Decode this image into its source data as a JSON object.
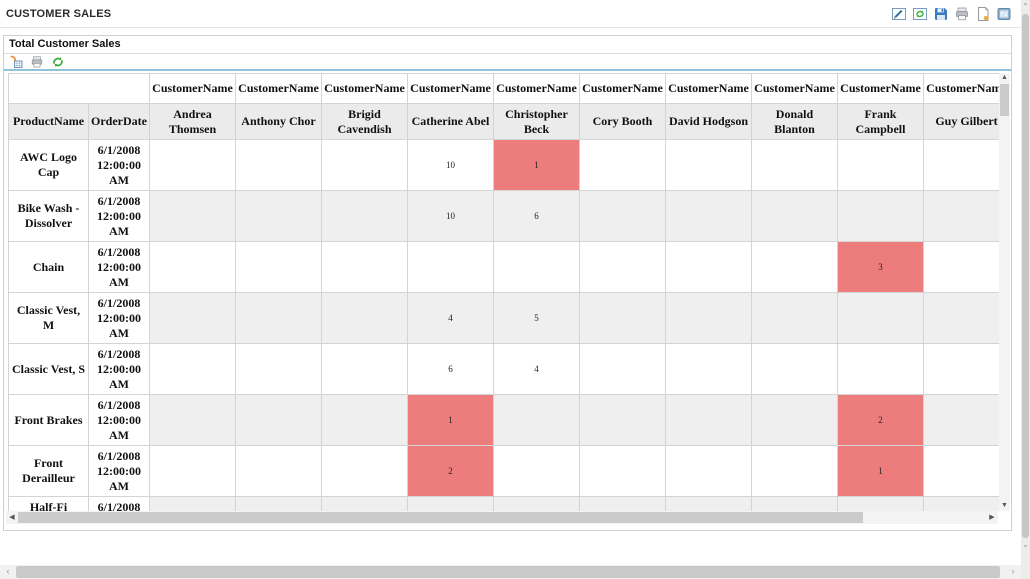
{
  "header": {
    "title": "CUSTOMER SALES"
  },
  "top_toolbar": {
    "icon_names": [
      "edit-report-icon",
      "refresh-view-icon",
      "save-icon",
      "print-icon",
      "print-layout-icon",
      "page-setup-icon"
    ]
  },
  "report": {
    "title": "Total Customer Sales",
    "toolbar_icon_names": [
      "export-icon",
      "print-icon",
      "refresh-icon"
    ]
  },
  "grid": {
    "column_group_label": "CustomerName",
    "row_headers": [
      "ProductName",
      "OrderDate"
    ],
    "customers": [
      "Andrea Thomsen",
      "Anthony Chor",
      "Brigid Cavendish",
      "Catherine Abel",
      "Christopher Beck",
      "Cory Booth",
      "David Hodgson",
      "Donald Blanton",
      "Frank Campbell",
      "Guy Gilbert"
    ],
    "rows": [
      {
        "product": "AWC Logo Cap",
        "order_date": "6/1/2008 12:00:00 AM",
        "values": [
          "",
          "",
          "",
          "10",
          "1",
          "",
          "",
          "",
          "",
          ""
        ],
        "highlight_cols": [
          4
        ],
        "partial": false
      },
      {
        "product": "Bike Wash - Dissolver",
        "order_date": "6/1/2008 12:00:00 AM",
        "values": [
          "",
          "",
          "",
          "10",
          "6",
          "",
          "",
          "",
          "",
          ""
        ],
        "highlight_cols": [],
        "partial": false
      },
      {
        "product": "Chain",
        "order_date": "6/1/2008 12:00:00 AM",
        "values": [
          "",
          "",
          "",
          "",
          "",
          "",
          "",
          "",
          "3",
          ""
        ],
        "highlight_cols": [
          8
        ],
        "partial": false
      },
      {
        "product": "Classic Vest, M",
        "order_date": "6/1/2008 12:00:00 AM",
        "values": [
          "",
          "",
          "",
          "4",
          "5",
          "",
          "",
          "",
          "",
          ""
        ],
        "highlight_cols": [],
        "partial": false
      },
      {
        "product": "Classic Vest, S",
        "order_date": "6/1/2008 12:00:00 AM",
        "values": [
          "",
          "",
          "",
          "6",
          "4",
          "",
          "",
          "",
          "",
          ""
        ],
        "highlight_cols": [],
        "partial": false
      },
      {
        "product": "Front Brakes",
        "order_date": "6/1/2008 12:00:00 AM",
        "values": [
          "",
          "",
          "",
          "1",
          "",
          "",
          "",
          "",
          "2",
          ""
        ],
        "highlight_cols": [
          3,
          8
        ],
        "partial": false
      },
      {
        "product": "Front Derailleur",
        "order_date": "6/1/2008 12:00:00 AM",
        "values": [
          "",
          "",
          "",
          "2",
          "",
          "",
          "",
          "",
          "1",
          ""
        ],
        "highlight_cols": [
          3,
          8
        ],
        "partial": false
      },
      {
        "product": "Half-Fi",
        "order_date": "6/1/2008",
        "values": [
          "",
          "",
          "",
          "",
          "",
          "",
          "",
          "",
          "",
          ""
        ],
        "highlight_cols": [],
        "partial": true
      }
    ],
    "colors": {
      "highlight_cell": "#ed7d7d",
      "product_column": "#ffffcc",
      "date_column": "#fcdcb5",
      "alt_row": "#efefef",
      "header_row": "#ebebeb",
      "toolbar_rule": "#8fc3da"
    }
  }
}
